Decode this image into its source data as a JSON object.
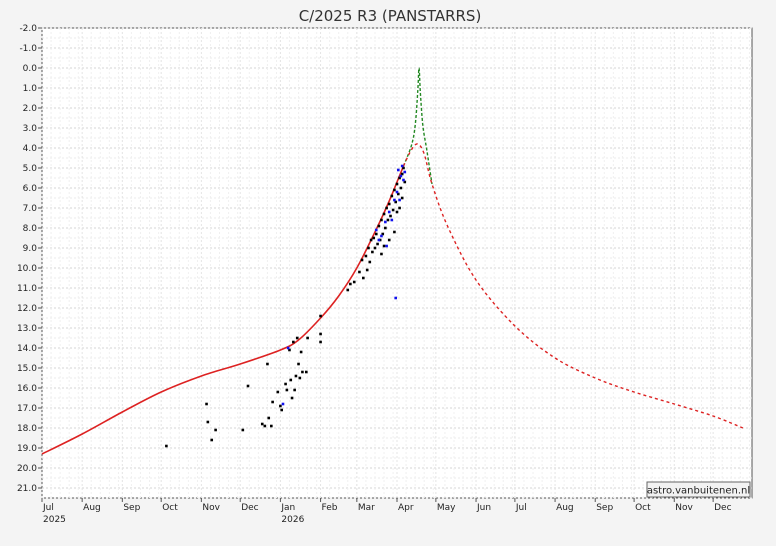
{
  "chart_data": {
    "type": "scatter",
    "title": "C/2025 R3 (PANSTARRS)",
    "credit": "astro.vanbuitenen.nl",
    "ylim": [
      -2.0,
      21.5
    ],
    "y_inverted": true,
    "y_ticks": [
      "-2.0",
      "-1.0",
      "0.0",
      "1.0",
      "2.0",
      "3.0",
      "4.0",
      "5.0",
      "6.0",
      "7.0",
      "8.0",
      "9.0",
      "10.0",
      "11.0",
      "12.0",
      "13.0",
      "14.0",
      "15.0",
      "16.0",
      "17.0",
      "18.0",
      "19.0",
      "20.0",
      "21.0"
    ],
    "x_start": "2025-07-01",
    "x_end": "2026-12-31",
    "x_ticks": [
      {
        "label": "Jul",
        "year": "2025"
      },
      {
        "label": "Aug",
        "year": ""
      },
      {
        "label": "Sep",
        "year": ""
      },
      {
        "label": "Oct",
        "year": ""
      },
      {
        "label": "Nov",
        "year": ""
      },
      {
        "label": "Dec",
        "year": ""
      },
      {
        "label": "Jan",
        "year": "2026"
      },
      {
        "label": "Feb",
        "year": ""
      },
      {
        "label": "Mar",
        "year": ""
      },
      {
        "label": "Apr",
        "year": ""
      },
      {
        "label": "May",
        "year": ""
      },
      {
        "label": "Jun",
        "year": ""
      },
      {
        "label": "Jul",
        "year": ""
      },
      {
        "label": "Aug",
        "year": ""
      },
      {
        "label": "Sep",
        "year": ""
      },
      {
        "label": "Oct",
        "year": ""
      },
      {
        "label": "Nov",
        "year": ""
      },
      {
        "label": "Dec",
        "year": ""
      }
    ],
    "grid": true,
    "colors": {
      "model": "#dd2222",
      "forward_scatter": "#228822",
      "obs_black": "#000000",
      "obs_blue": "#1111ee",
      "background": "#ffffff"
    },
    "model_solid": [
      [
        "2025-07-01",
        19.3
      ],
      [
        "2025-08-01",
        18.3
      ],
      [
        "2025-09-01",
        17.2
      ],
      [
        "2025-10-01",
        16.2
      ],
      [
        "2025-11-01",
        15.4
      ],
      [
        "2025-12-01",
        14.8
      ],
      [
        "2026-01-01",
        14.1
      ],
      [
        "2026-01-15",
        13.6
      ],
      [
        "2026-02-01",
        12.5
      ],
      [
        "2026-02-15",
        11.4
      ],
      [
        "2026-03-01",
        10.0
      ],
      [
        "2026-03-15",
        8.2
      ],
      [
        "2026-03-25",
        6.8
      ],
      [
        "2026-04-01",
        5.7
      ],
      [
        "2026-04-06",
        4.9
      ]
    ],
    "model_dashed": [
      [
        "2026-04-06",
        4.9
      ],
      [
        "2026-04-12",
        4.1
      ],
      [
        "2026-04-17",
        3.8
      ],
      [
        "2026-04-22",
        4.3
      ],
      [
        "2026-04-28",
        5.8
      ],
      [
        "2026-05-10",
        7.9
      ],
      [
        "2026-06-01",
        10.6
      ],
      [
        "2026-07-01",
        12.9
      ],
      [
        "2026-08-01",
        14.5
      ],
      [
        "2026-09-01",
        15.5
      ],
      [
        "2026-10-01",
        16.2
      ],
      [
        "2026-11-01",
        16.8
      ],
      [
        "2026-12-01",
        17.4
      ],
      [
        "2026-12-24",
        18.0
      ]
    ],
    "forward_scatter_dashed": [
      [
        "2026-04-06",
        4.9
      ],
      [
        "2026-04-12",
        3.9
      ],
      [
        "2026-04-15",
        2.9
      ],
      [
        "2026-04-17",
        1.2
      ],
      [
        "2026-04-18",
        0.0
      ],
      [
        "2026-04-19",
        1.2
      ],
      [
        "2026-04-21",
        2.9
      ],
      [
        "2026-04-24",
        4.1
      ],
      [
        "2026-04-28",
        5.8
      ]
    ],
    "observations_black": [
      [
        "2025-10-05",
        18.9
      ],
      [
        "2025-11-05",
        16.8
      ],
      [
        "2025-11-06",
        17.7
      ],
      [
        "2025-11-09",
        18.6
      ],
      [
        "2025-11-12",
        18.1
      ],
      [
        "2025-12-03",
        18.1
      ],
      [
        "2025-12-07",
        15.9
      ],
      [
        "2025-12-18",
        17.8
      ],
      [
        "2025-12-20",
        17.9
      ],
      [
        "2025-12-22",
        14.8
      ],
      [
        "2025-12-23",
        17.5
      ],
      [
        "2025-12-25",
        17.9
      ],
      [
        "2025-12-26",
        16.7
      ],
      [
        "2025-12-30",
        16.2
      ],
      [
        "2026-01-01",
        16.9
      ],
      [
        "2026-01-02",
        17.1
      ],
      [
        "2026-01-05",
        15.8
      ],
      [
        "2026-01-06",
        16.1
      ],
      [
        "2026-01-08",
        14.1
      ],
      [
        "2026-01-09",
        15.6
      ],
      [
        "2026-01-10",
        16.5
      ],
      [
        "2026-01-11",
        13.7
      ],
      [
        "2026-01-12",
        16.1
      ],
      [
        "2026-01-13",
        15.4
      ],
      [
        "2026-01-14",
        13.5
      ],
      [
        "2026-01-15",
        14.8
      ],
      [
        "2026-01-16",
        15.5
      ],
      [
        "2026-01-17",
        14.2
      ],
      [
        "2026-01-18",
        15.2
      ],
      [
        "2026-01-21",
        15.2
      ],
      [
        "2026-01-22",
        13.5
      ],
      [
        "2026-02-01",
        13.7
      ],
      [
        "2026-02-01",
        13.3
      ],
      [
        "2026-02-01",
        12.4
      ],
      [
        "2026-02-22",
        11.1
      ],
      [
        "2026-02-24",
        10.8
      ],
      [
        "2026-02-27",
        10.7
      ],
      [
        "2026-03-03",
        10.2
      ],
      [
        "2026-03-05",
        9.6
      ],
      [
        "2026-03-06",
        10.5
      ],
      [
        "2026-03-08",
        9.4
      ],
      [
        "2026-03-09",
        10.1
      ],
      [
        "2026-03-10",
        9.0
      ],
      [
        "2026-03-11",
        9.7
      ],
      [
        "2026-03-12",
        8.6
      ],
      [
        "2026-03-13",
        9.2
      ],
      [
        "2026-03-14",
        8.5
      ],
      [
        "2026-03-15",
        9.0
      ],
      [
        "2026-03-16",
        8.3
      ],
      [
        "2026-03-17",
        8.8
      ],
      [
        "2026-03-18",
        7.9
      ],
      [
        "2026-03-19",
        8.6
      ],
      [
        "2026-03-20",
        7.6
      ],
      [
        "2026-03-21",
        8.3
      ],
      [
        "2026-03-22",
        7.3
      ],
      [
        "2026-03-23",
        8.0
      ],
      [
        "2026-03-24",
        7.0
      ],
      [
        "2026-03-25",
        7.6
      ],
      [
        "2026-03-26",
        6.8
      ],
      [
        "2026-03-27",
        7.4
      ],
      [
        "2026-03-28",
        6.4
      ],
      [
        "2026-03-29",
        7.1
      ],
      [
        "2026-03-30",
        6.1
      ],
      [
        "2026-03-31",
        6.7
      ],
      [
        "2026-04-01",
        5.8
      ],
      [
        "2026-04-01",
        7.2
      ],
      [
        "2026-04-02",
        6.3
      ],
      [
        "2026-04-03",
        5.5
      ],
      [
        "2026-04-03",
        7.0
      ],
      [
        "2026-04-04",
        6.0
      ],
      [
        "2026-04-05",
        5.3
      ],
      [
        "2026-04-05",
        6.5
      ],
      [
        "2026-04-06",
        5.0
      ],
      [
        "2026-04-07",
        5.7
      ],
      [
        "2026-03-30",
        8.2
      ],
      [
        "2026-03-26",
        8.6
      ],
      [
        "2026-03-20",
        9.3
      ],
      [
        "2026-03-22",
        8.9
      ]
    ],
    "observations_blue": [
      [
        "2026-01-03",
        16.8
      ],
      [
        "2026-01-07",
        14.0
      ],
      [
        "2026-03-16",
        8.1
      ],
      [
        "2026-03-18",
        8.6
      ],
      [
        "2026-03-20",
        8.4
      ],
      [
        "2026-03-23",
        7.7
      ],
      [
        "2026-03-24",
        8.9
      ],
      [
        "2026-03-26",
        7.2
      ],
      [
        "2026-03-28",
        7.6
      ],
      [
        "2026-03-30",
        6.6
      ],
      [
        "2026-04-01",
        6.2
      ],
      [
        "2026-04-02",
        5.1
      ],
      [
        "2026-04-03",
        6.6
      ],
      [
        "2026-04-04",
        5.4
      ],
      [
        "2026-04-05",
        4.9
      ],
      [
        "2026-04-06",
        5.6
      ],
      [
        "2026-04-07",
        5.2
      ],
      [
        "2026-03-31",
        11.5
      ]
    ]
  }
}
